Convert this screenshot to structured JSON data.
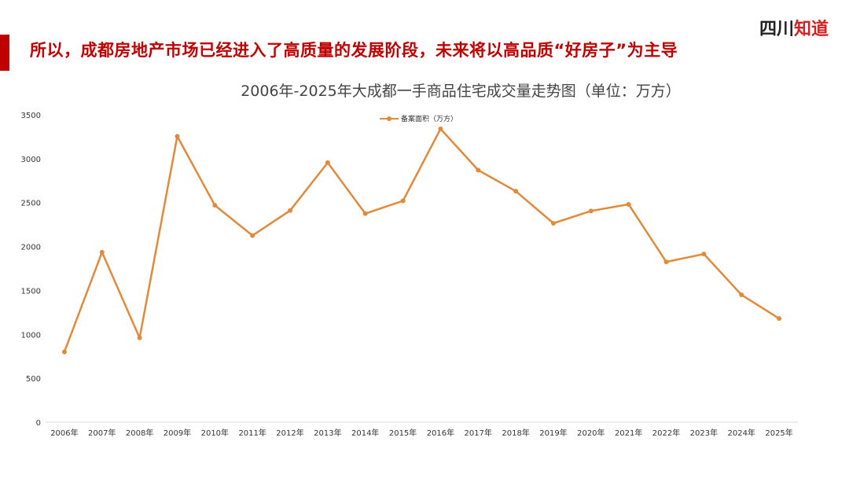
{
  "headline": "所以，成都房地产市场已经进入了高质量的发展阶段，未来将以高品质“好房子”为主导",
  "logo": {
    "part1": "四川",
    "part2": "知道"
  },
  "colors": {
    "accent": "#c00000",
    "series": "#e08a3c"
  },
  "chart_data": {
    "type": "line",
    "title": "2006年-2025年大成都一手商品住宅成交量走势图（单位：万方）",
    "xlabel": "",
    "ylabel": "",
    "ylim": [
      0,
      3500
    ],
    "yticks": [
      0,
      500,
      1000,
      1500,
      2000,
      2500,
      3000,
      3500
    ],
    "categories": [
      "2006年",
      "2007年",
      "2008年",
      "2009年",
      "2010年",
      "2011年",
      "2012年",
      "2013年",
      "2014年",
      "2015年",
      "2016年",
      "2017年",
      "2018年",
      "2019年",
      "2020年",
      "2021年",
      "2022年",
      "2023年",
      "2024年",
      "2025年"
    ],
    "legend_position": "top-center",
    "grid": false,
    "series": [
      {
        "name": "备案面积（万方）",
        "values": [
          800,
          1935,
          960,
          3255,
          2470,
          2125,
          2410,
          2955,
          2375,
          2520,
          3340,
          2870,
          2630,
          2265,
          2405,
          2480,
          1825,
          1915,
          1450,
          1180
        ]
      }
    ]
  }
}
